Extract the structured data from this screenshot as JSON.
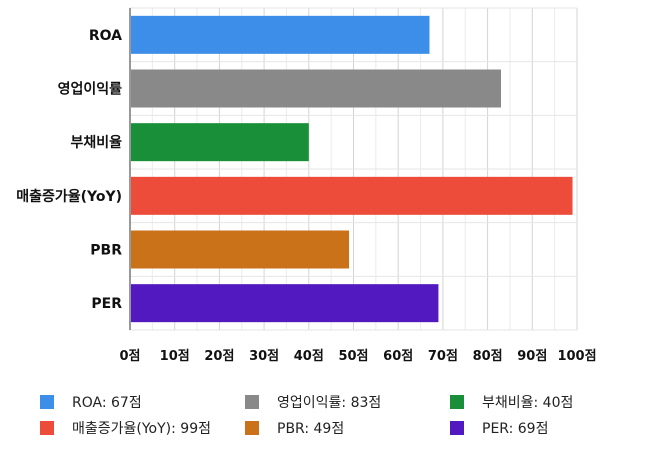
{
  "chart_data": {
    "type": "bar",
    "orientation": "horizontal",
    "categories": [
      "ROA",
      "영업이익률",
      "부채비율",
      "매출증가율(YoY)",
      "PBR",
      "PER"
    ],
    "values": [
      67,
      83,
      40,
      99,
      49,
      69
    ],
    "colors": [
      "#3d8ee8",
      "#898989",
      "#1a8f39",
      "#ed4c3b",
      "#c9721a",
      "#5219c0"
    ],
    "xlim": [
      0,
      100
    ],
    "x_ticks": [
      0,
      10,
      20,
      30,
      40,
      50,
      60,
      70,
      80,
      90,
      100
    ],
    "tick_suffix": "점",
    "grid": true,
    "legend_position": "bottom",
    "legend": [
      {
        "label": "ROA: 67점",
        "color": "#3d8ee8"
      },
      {
        "label": "영업이익률: 83점",
        "color": "#898989"
      },
      {
        "label": "부채비율: 40점",
        "color": "#1a8f39"
      },
      {
        "label": "매출증가율(YoY): 99점",
        "color": "#ed4c3b"
      },
      {
        "label": "PBR: 49점",
        "color": "#c9721a"
      },
      {
        "label": "PER: 69점",
        "color": "#5219c0"
      }
    ]
  }
}
